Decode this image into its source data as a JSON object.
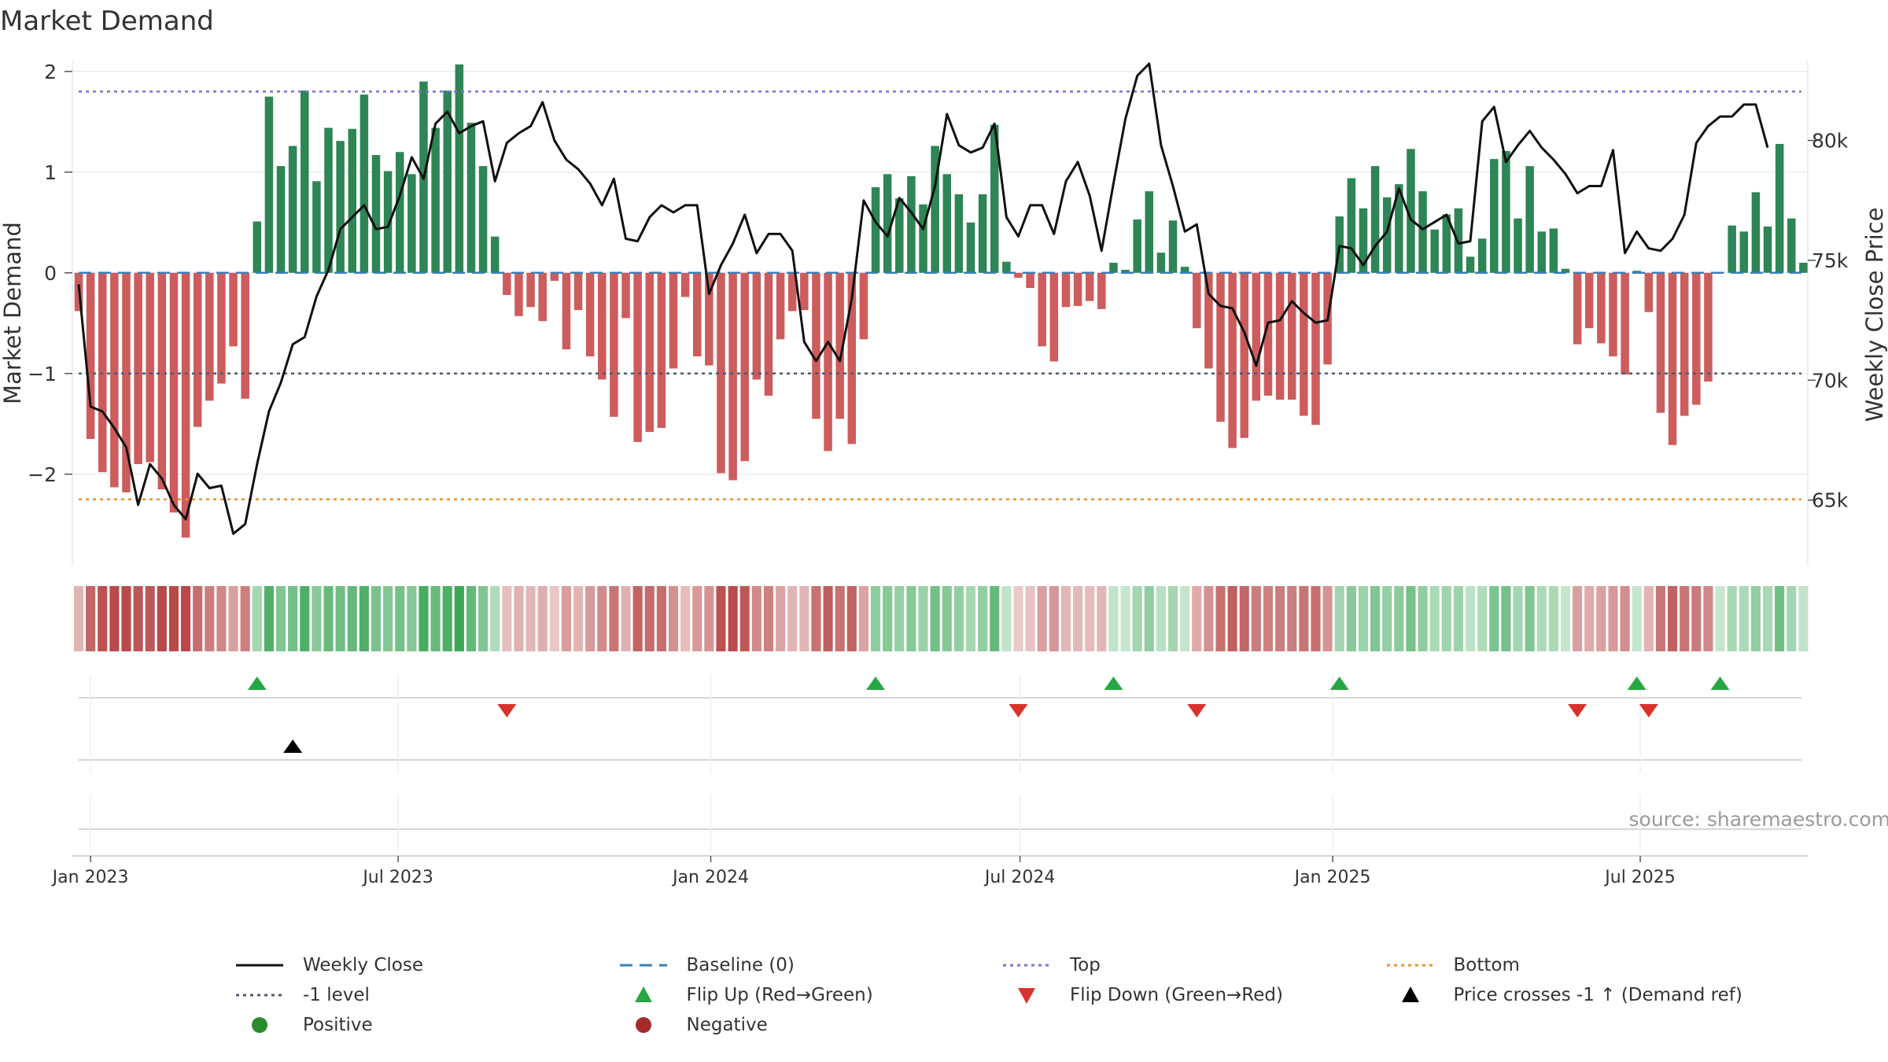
{
  "chart_data": {
    "type": "bar",
    "title": "Market Demand",
    "ylabel_left": "Market Demand",
    "ylabel_right": "Weekly Close Price",
    "source_note": "source: sharemaestro.com",
    "x_tick_labels": [
      "Jan 2023",
      "Jul 2023",
      "Jan 2024",
      "Jul 2024",
      "Jan 2025",
      "Jul 2025"
    ],
    "left_ticks": [
      {
        "v": 2,
        "label": "2"
      },
      {
        "v": 1,
        "label": "1"
      },
      {
        "v": 0,
        "label": "0"
      },
      {
        "v": -1,
        "label": "−1"
      },
      {
        "v": -2,
        "label": "−2"
      }
    ],
    "right_ticks": [
      {
        "v": 80000,
        "label": "80k"
      },
      {
        "v": 75000,
        "label": "75k"
      },
      {
        "v": 70000,
        "label": "70k"
      },
      {
        "v": 65000,
        "label": "65k"
      }
    ],
    "ylim_left": [
      -2.9,
      2.1
    ],
    "ylim_right": [
      62300,
      83300
    ],
    "levels": {
      "top": 1.8,
      "minus_one": -1,
      "bottom": -2.25,
      "baseline": 0
    },
    "start_week": "2022-12-25",
    "demand": [
      -0.38,
      -1.65,
      -1.98,
      -2.13,
      -2.18,
      -1.9,
      -1.88,
      -2.15,
      -2.38,
      -2.63,
      -1.53,
      -1.27,
      -1.1,
      -0.73,
      -1.25,
      0.51,
      1.75,
      1.06,
      1.26,
      1.81,
      0.91,
      1.44,
      1.31,
      1.43,
      1.77,
      1.17,
      1.01,
      1.2,
      0.98,
      1.9,
      1.44,
      1.81,
      2.07,
      1.49,
      1.06,
      0.36,
      -0.22,
      -0.43,
      -0.34,
      -0.48,
      -0.08,
      -0.76,
      -0.37,
      -0.83,
      -1.06,
      -1.43,
      -0.45,
      -1.68,
      -1.58,
      -1.54,
      -0.95,
      -0.24,
      -0.83,
      -0.92,
      -1.99,
      -2.06,
      -1.87,
      -1.06,
      -1.22,
      -0.66,
      -0.38,
      -0.37,
      -1.45,
      -1.77,
      -1.45,
      -1.7,
      -0.66,
      0.85,
      0.98,
      0.74,
      0.96,
      0.68,
      1.26,
      0.98,
      0.78,
      0.5,
      0.78,
      1.47,
      0.11,
      -0.05,
      -0.15,
      -0.73,
      -0.88,
      -0.34,
      -0.33,
      -0.28,
      -0.36,
      0.1,
      0.03,
      0.53,
      0.81,
      0.2,
      0.52,
      0.06,
      -0.55,
      -0.95,
      -1.48,
      -1.74,
      -1.64,
      -1.27,
      -1.22,
      -1.26,
      -1.26,
      -1.42,
      -1.51,
      -0.91,
      0.56,
      0.94,
      0.64,
      1.06,
      0.75,
      0.88,
      1.23,
      0.81,
      0.43,
      0.58,
      0.64,
      0.16,
      0.34,
      1.13,
      1.21,
      0.54,
      1.06,
      0.41,
      0.44,
      0.04,
      -0.71,
      -0.55,
      -0.7,
      -0.83,
      -1.01,
      0.02,
      -0.39,
      -1.39,
      -1.71,
      -1.42,
      -1.31,
      -1.08,
      0.01,
      0.47,
      0.41,
      0.8,
      0.46,
      1.28,
      0.54,
      0.1
    ],
    "close": [
      74000,
      68900,
      68700,
      68000,
      67200,
      64800,
      66500,
      65900,
      64800,
      64200,
      66100,
      65500,
      65600,
      63600,
      64000,
      66500,
      68700,
      69900,
      71500,
      71800,
      73500,
      74600,
      76300,
      76800,
      77300,
      76300,
      76400,
      77700,
      79300,
      78400,
      80700,
      81200,
      80300,
      80600,
      80800,
      78300,
      79900,
      80300,
      80600,
      81600,
      80000,
      79200,
      78800,
      78200,
      77300,
      78400,
      75900,
      75800,
      76800,
      77300,
      77000,
      77300,
      77300,
      73600,
      74800,
      75700,
      76900,
      75300,
      76100,
      76100,
      75400,
      71600,
      70800,
      71600,
      70800,
      73400,
      77500,
      76600,
      76000,
      77600,
      77000,
      76300,
      78100,
      81100,
      79800,
      79500,
      79700,
      80700,
      76800,
      76000,
      77300,
      77300,
      76100,
      78300,
      79100,
      77700,
      75400,
      78200,
      80900,
      82700,
      83200,
      79800,
      78100,
      76200,
      76500,
      73600,
      73100,
      73000,
      72000,
      70600,
      72400,
      72500,
      73300,
      72800,
      72400,
      72500,
      75600,
      75500,
      74800,
      75600,
      76200,
      78000,
      76700,
      76300,
      76600,
      76900,
      75700,
      75800,
      80800,
      81400,
      79100,
      79800,
      80400,
      79700,
      79200,
      78600,
      77800,
      78100,
      78100,
      79600,
      75300,
      76200,
      75500,
      75400,
      75900,
      76900,
      79900,
      80600,
      81000,
      81000,
      81500,
      81500,
      79700
    ],
    "flip_up_weeks": [
      15,
      67,
      87,
      106,
      131,
      138
    ],
    "flip_down_weeks": [
      36,
      79,
      94,
      126,
      132
    ],
    "price_cross_weeks": [
      18
    ],
    "legend": {
      "weekly_close": "Weekly Close",
      "baseline": "Baseline (0)",
      "top": "Top",
      "bottom": "Bottom",
      "minus_one": "-1 level",
      "flip_up": "Flip Up (Red→Green)",
      "flip_down": "Flip Down (Green→Red)",
      "price_cross": "Price crosses -1 ↑ (Demand ref)",
      "positive": "Positive",
      "negative": "Negative"
    },
    "colors": {
      "positive": "#2e8555",
      "negative": "#cd5c5c",
      "price": "#111111",
      "top": "#7b72d6",
      "bottom": "#e8932a",
      "minus_one": "#4e5a6e",
      "baseline": "#3b7fb8",
      "flip_up": "#27a744",
      "flip_down": "#d8332a",
      "price_cross": "#000000",
      "legend_positive": "#2b8a2b",
      "legend_negative": "#a52a2a"
    }
  }
}
